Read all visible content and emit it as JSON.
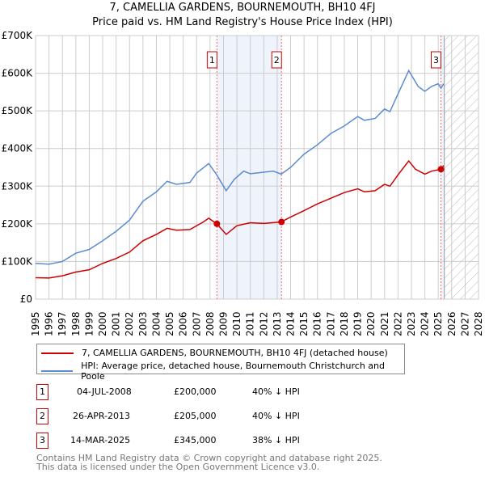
{
  "chart_data": {
    "type": "line",
    "title": "7, CAMELLIA GARDENS, BOURNEMOUTH, BH10 4FJ",
    "subtitle": "Price paid vs. HM Land Registry's House Price Index (HPI)",
    "xlim": [
      1995,
      2028
    ],
    "ylim": [
      0,
      700000
    ],
    "yticks": [
      {
        "v": 0,
        "label": "£0"
      },
      {
        "v": 100000,
        "label": "£100K"
      },
      {
        "v": 200000,
        "label": "£200K"
      },
      {
        "v": 300000,
        "label": "£300K"
      },
      {
        "v": 400000,
        "label": "£400K"
      },
      {
        "v": 500000,
        "label": "£500K"
      },
      {
        "v": 600000,
        "label": "£600K"
      },
      {
        "v": 700000,
        "label": "£700K"
      }
    ],
    "xticks": [
      "1995",
      "1996",
      "1997",
      "1998",
      "1999",
      "2000",
      "2001",
      "2002",
      "2003",
      "2004",
      "2005",
      "2006",
      "2007",
      "2008",
      "2009",
      "2010",
      "2011",
      "2012",
      "2013",
      "2014",
      "2015",
      "2016",
      "2017",
      "2018",
      "2019",
      "2020",
      "2021",
      "2022",
      "2023",
      "2024",
      "2025",
      "2026",
      "2027",
      "2028"
    ],
    "grid": true,
    "forecast_start": 2025.45,
    "series": [
      {
        "name": "7, CAMELLIA GARDENS, BOURNEMOUTH, BH10 4FJ (detached house)",
        "color": "#cc0000",
        "x": [
          1995,
          1996,
          1997,
          1998,
          1999,
          2000,
          2001,
          2002,
          2003,
          2004,
          2004.8,
          2005.5,
          2006.5,
          2007.5,
          2007.9,
          2008.5,
          2009.2,
          2010,
          2011,
          2012,
          2013.3,
          2014,
          2015,
          2016,
          2017,
          2018,
          2019,
          2019.5,
          2020.3,
          2021,
          2021.4,
          2022,
          2022.8,
          2023.3,
          2024,
          2024.5,
          2025.2,
          2025.4
        ],
        "y": [
          57000,
          56000,
          62000,
          72000,
          78000,
          95000,
          108000,
          125000,
          155000,
          172000,
          188000,
          183000,
          185000,
          205000,
          215000,
          200000,
          172000,
          195000,
          203000,
          201000,
          205000,
          218000,
          235000,
          253000,
          268000,
          283000,
          293000,
          285000,
          288000,
          305000,
          300000,
          330000,
          367000,
          345000,
          332000,
          340000,
          345000,
          355000
        ]
      },
      {
        "name": "HPI: Average price, detached house, Bournemouth Christchurch and Poole",
        "color": "#5b8bd0",
        "x": [
          1995,
          1996,
          1997,
          1998,
          1999,
          2000,
          2001,
          2002,
          2003,
          2004,
          2004.8,
          2005.5,
          2006.5,
          2007,
          2007.9,
          2008.5,
          2009.2,
          2009.8,
          2010.5,
          2011,
          2012,
          2012.7,
          2013.3,
          2014,
          2015,
          2016,
          2017,
          2018,
          2019,
          2019.5,
          2020.3,
          2021,
          2021.4,
          2022,
          2022.8,
          2023.5,
          2024,
          2024.5,
          2025,
          2025.2,
          2025.4
        ],
        "y": [
          95000,
          93000,
          100000,
          122000,
          132000,
          155000,
          180000,
          210000,
          260000,
          285000,
          313000,
          305000,
          310000,
          335000,
          360000,
          330000,
          288000,
          318000,
          340000,
          333000,
          337000,
          340000,
          332000,
          350000,
          385000,
          410000,
          440000,
          460000,
          485000,
          475000,
          480000,
          505000,
          498000,
          545000,
          607000,
          565000,
          552000,
          565000,
          572000,
          560000,
          572000
        ]
      }
    ],
    "sales": [
      {
        "n": "1",
        "x": 2008.51,
        "price": 200000,
        "date": "04-JUL-2008",
        "price_label": "£200,000",
        "hpi": "40% ↓ HPI"
      },
      {
        "n": "2",
        "x": 2013.32,
        "price": 205000,
        "date": "26-APR-2013",
        "price_label": "£205,000",
        "hpi": "40% ↓ HPI"
      },
      {
        "n": "3",
        "x": 2025.2,
        "price": 345000,
        "date": "14-MAR-2025",
        "price_label": "£345,000",
        "hpi": "38% ↓ HPI"
      }
    ]
  },
  "footer": {
    "line1": "Contains HM Land Registry data © Crown copyright and database right 2025.",
    "line2": "This data is licensed under the Open Government Licence v3.0."
  }
}
